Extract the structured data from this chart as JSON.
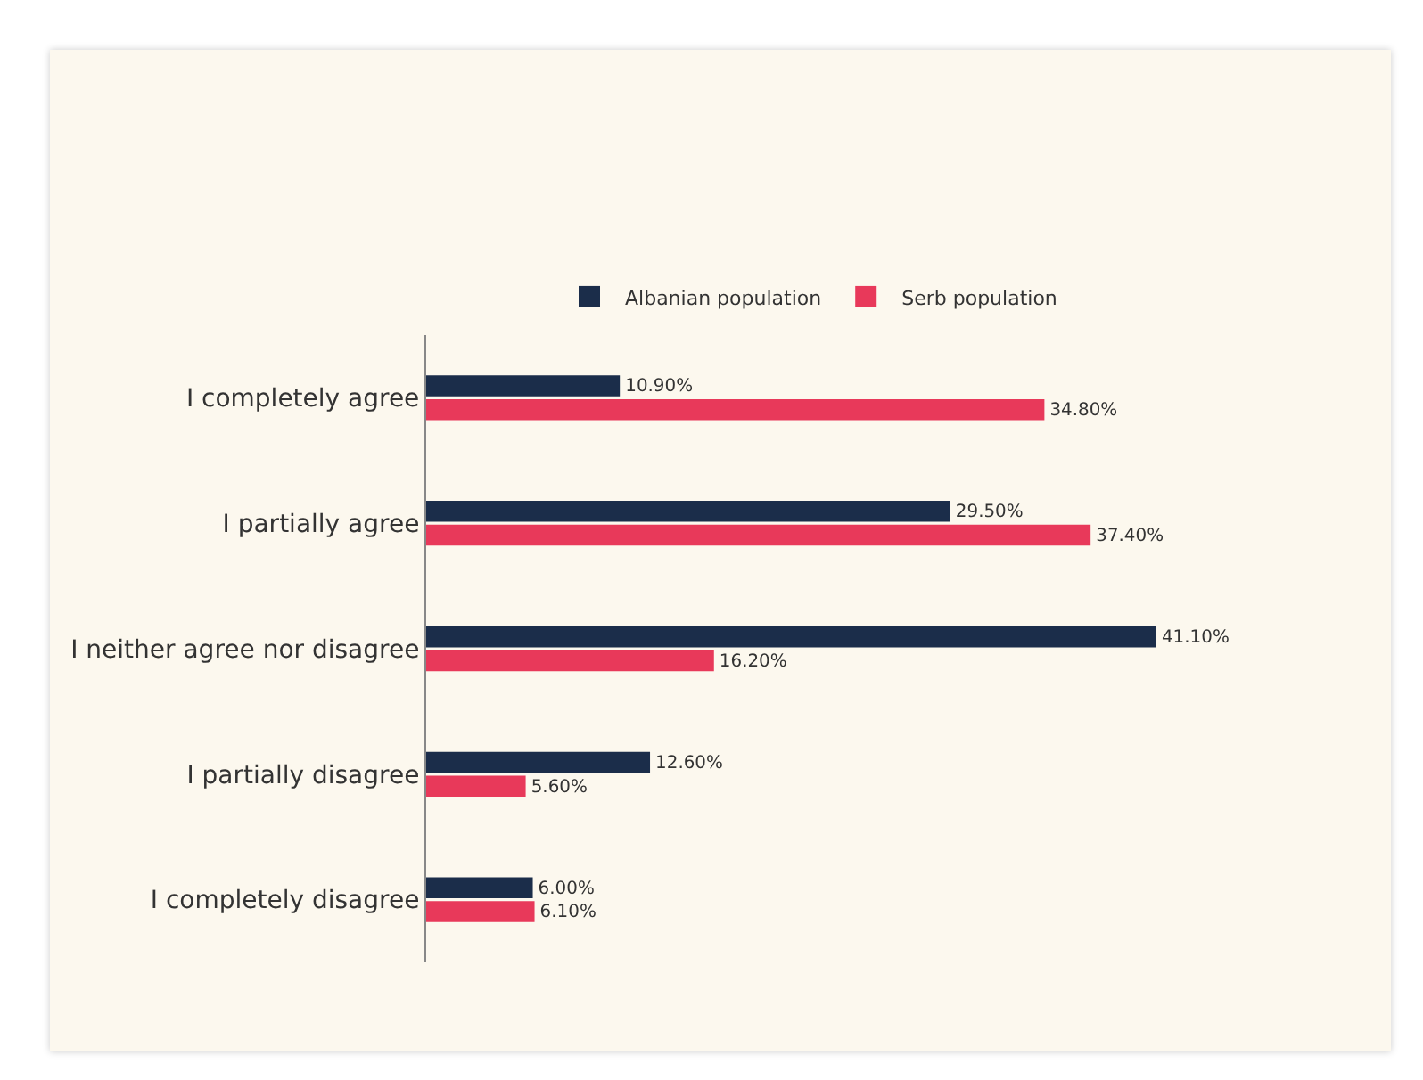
{
  "chart_data": {
    "type": "bar",
    "orientation": "horizontal",
    "legend": "top",
    "categories": [
      "I completely agree",
      "I partially agree",
      "I neither agree nor disagree",
      "I partially disagree",
      "I completely disagree"
    ],
    "series": [
      {
        "name": "Albanian population",
        "color": "#1b2d4a",
        "values": [
          10.9,
          29.5,
          41.1,
          12.6,
          6.0
        ],
        "value_labels": [
          "10.90%",
          "29.50%",
          "41.10%",
          "12.60%",
          "6.00%"
        ]
      },
      {
        "name": "Serb population",
        "color": "#e8395a",
        "values": [
          34.8,
          37.4,
          16.2,
          5.6,
          6.1
        ],
        "value_labels": [
          "34.80%",
          "37.40%",
          "16.20%",
          "5.60%",
          "6.10%"
        ]
      }
    ]
  }
}
